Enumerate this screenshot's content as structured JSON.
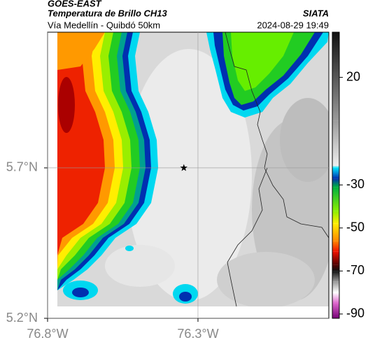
{
  "header": {
    "source": "GOES-EAST",
    "title": "Temperatura de Brillo CH13",
    "org": "SIATA",
    "subtitle": "Vía Medellín - Quibdó 50km",
    "timestamp": "2024-08-29 19:49"
  },
  "map": {
    "lonlim": [
      -76.8,
      -75.865
    ],
    "latlim": [
      5.2,
      6.151
    ],
    "lonticks": [
      {
        "value": -76.8,
        "label": "76.8°W"
      },
      {
        "value": -76.3,
        "label": "76.3°W"
      }
    ],
    "latticks": [
      {
        "value": 5.2,
        "label": "5.2°N"
      },
      {
        "value": 5.7,
        "label": "5.7°N"
      }
    ],
    "grid": true,
    "marker": {
      "lon": -76.347,
      "lat": 5.7
    }
  },
  "colorbar": {
    "lim": [
      -92,
      41
    ],
    "ticks": [
      20,
      -30,
      -50,
      -70,
      -90
    ],
    "stops": [
      {
        "value": 41,
        "color": "#111111"
      },
      {
        "value": 0,
        "color": "#9a9a9a"
      },
      {
        "value": -21,
        "color": "#eeeeee"
      },
      {
        "value": -22,
        "color": "#00e5ff"
      },
      {
        "value": -27,
        "color": "#0030b0"
      },
      {
        "value": -31,
        "color": "#00b040"
      },
      {
        "value": -42,
        "color": "#88ee00"
      },
      {
        "value": -48,
        "color": "#ffee00"
      },
      {
        "value": -56,
        "color": "#ff8800"
      },
      {
        "value": -61,
        "color": "#ee1100"
      },
      {
        "value": -67,
        "color": "#550000"
      },
      {
        "value": -70,
        "color": "#111111"
      },
      {
        "value": -75,
        "color": "#999999"
      },
      {
        "value": -80,
        "color": "#ffffff"
      },
      {
        "value": -85,
        "color": "#dd66cc"
      },
      {
        "value": -92,
        "color": "#770077"
      }
    ]
  }
}
